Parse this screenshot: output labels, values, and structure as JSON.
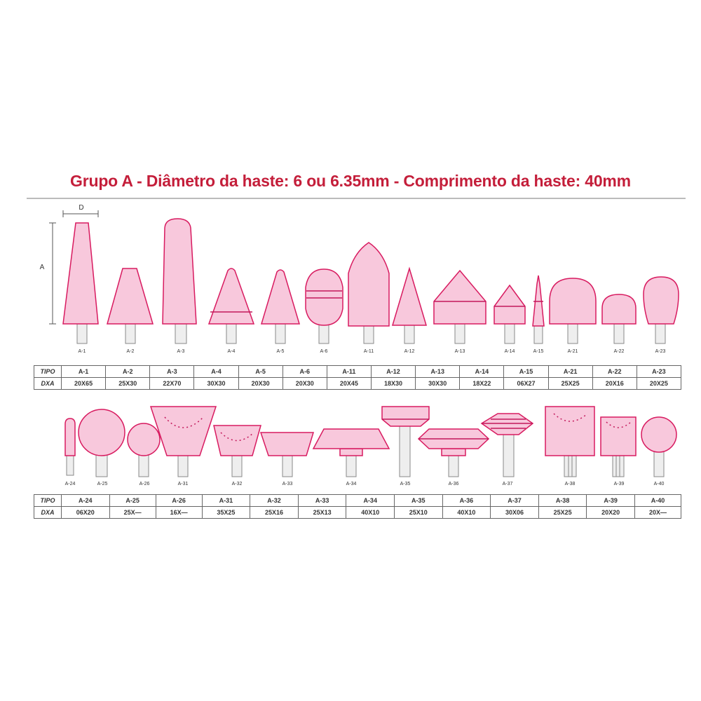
{
  "title": "Grupo A - Diâmetro da haste: 6 ou 6.35mm - Comprimento da haste: 40mm",
  "dimension_labels": {
    "d": "D",
    "a": "A"
  },
  "colors": {
    "title": "#c41e3a",
    "tool_fill": "#f8c8dc",
    "tool_stroke": "#d81b60"
  },
  "table_headers": {
    "tipo": "TIPO",
    "dxa": "DXA"
  },
  "row1": [
    {
      "tipo": "A-1",
      "dxa": "20X65"
    },
    {
      "tipo": "A-2",
      "dxa": "25X30"
    },
    {
      "tipo": "A-3",
      "dxa": "22X70"
    },
    {
      "tipo": "A-4",
      "dxa": "30X30"
    },
    {
      "tipo": "A-5",
      "dxa": "20X30"
    },
    {
      "tipo": "A-6",
      "dxa": "20X30"
    },
    {
      "tipo": "A-11",
      "dxa": "20X45"
    },
    {
      "tipo": "A-12",
      "dxa": "18X30"
    },
    {
      "tipo": "A-13",
      "dxa": "30X30"
    },
    {
      "tipo": "A-14",
      "dxa": "18X22"
    },
    {
      "tipo": "A-15",
      "dxa": "06X27"
    },
    {
      "tipo": "A-21",
      "dxa": "25X25"
    },
    {
      "tipo": "A-22",
      "dxa": "20X16"
    },
    {
      "tipo": "A-23",
      "dxa": "20X25"
    }
  ],
  "row2": [
    {
      "tipo": "A-24",
      "dxa": "06X20"
    },
    {
      "tipo": "A-25",
      "dxa": "25X—"
    },
    {
      "tipo": "A-26",
      "dxa": "16X—"
    },
    {
      "tipo": "A-31",
      "dxa": "35X25"
    },
    {
      "tipo": "A-32",
      "dxa": "25X16"
    },
    {
      "tipo": "A-33",
      "dxa": "25X13"
    },
    {
      "tipo": "A-34",
      "dxa": "40X10"
    },
    {
      "tipo": "A-35",
      "dxa": "25X10"
    },
    {
      "tipo": "A-36",
      "dxa": "40X10"
    },
    {
      "tipo": "A-37",
      "dxa": "30X06"
    },
    {
      "tipo": "A-38",
      "dxa": "25X25"
    },
    {
      "tipo": "A-39",
      "dxa": "20X20"
    },
    {
      "tipo": "A-40",
      "dxa": "20X—"
    }
  ]
}
